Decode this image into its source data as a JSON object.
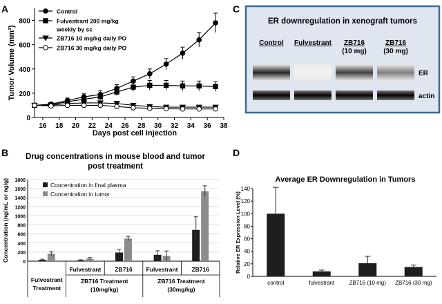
{
  "panels": {
    "a": "A",
    "b": "B",
    "c": "C",
    "d": "D"
  },
  "colors": {
    "dark": "#1e1e1e",
    "light": "#8c8c8c",
    "panel_border": "#3b6a94",
    "frame_bg": "#dfe6f0"
  },
  "chart_data": [
    {
      "id": "A",
      "type": "line",
      "title": "",
      "xlabel": "Days post cell injection",
      "ylabel": "Tumor Volume (mm³)",
      "xlim": [
        15,
        38
      ],
      "ylim": [
        0,
        900
      ],
      "xticks": [
        16,
        18,
        20,
        22,
        24,
        26,
        28,
        30,
        32,
        34,
        36,
        38
      ],
      "yticks": [
        0,
        200,
        400,
        600,
        800
      ],
      "x": [
        15,
        17,
        19,
        21,
        23,
        25,
        27,
        29,
        31,
        33,
        35,
        37
      ],
      "series": [
        {
          "name": "Control",
          "marker": "circle-filled",
          "values": [
            100,
            110,
            140,
            170,
            190,
            240,
            300,
            360,
            440,
            530,
            640,
            780
          ],
          "errors": [
            10,
            15,
            20,
            25,
            30,
            30,
            35,
            40,
            45,
            50,
            60,
            80
          ]
        },
        {
          "name": "Fulvestrant 200 mg/kg weekly by sc",
          "marker": "square-filled",
          "values": [
            100,
            105,
            130,
            150,
            170,
            210,
            250,
            265,
            265,
            260,
            260,
            255
          ],
          "errors": [
            10,
            15,
            20,
            20,
            25,
            30,
            35,
            40,
            40,
            40,
            40,
            40
          ]
        },
        {
          "name": "ZB716 10 mg/kg daily PO",
          "marker": "triangle-down-filled",
          "values": [
            100,
            100,
            115,
            120,
            120,
            115,
            100,
            90,
            85,
            85,
            85,
            85
          ],
          "errors": [
            10,
            10,
            12,
            15,
            15,
            15,
            12,
            10,
            10,
            10,
            10,
            10
          ]
        },
        {
          "name": "ZB716 30 mg/kg daily PO",
          "marker": "circle-open",
          "values": [
            100,
            95,
            100,
            100,
            100,
            90,
            80,
            75,
            72,
            70,
            70,
            70
          ],
          "errors": [
            10,
            10,
            10,
            12,
            12,
            10,
            10,
            10,
            10,
            10,
            10,
            10
          ]
        }
      ]
    },
    {
      "id": "B",
      "type": "bar",
      "title_lines": [
        "Drug concentrations in mouse blood and tumor",
        "post treatment"
      ],
      "ylabel": "Concentration (ng/mL or ng/g)",
      "ylim": [
        0,
        1800
      ],
      "yticks": [
        0,
        200,
        400,
        600,
        800,
        1000,
        1200,
        1400,
        1600,
        1800
      ],
      "legend": [
        "Concentration in final plasma",
        "Concentration in tumor"
      ],
      "categories": [
        "Fulvestrant",
        "Fulvestrant",
        "ZB716",
        "Fulvestrant",
        "ZB716"
      ],
      "category_labels": [
        "",
        "Fulvestrant",
        "ZB716",
        "Fulvestrant",
        "ZB716"
      ],
      "group_labels": [
        {
          "lines": [
            "Fulvestrant",
            "Treatment"
          ],
          "span": [
            0,
            1
          ]
        },
        {
          "lines": [
            "ZB716 Treatment",
            "(10mg/kg)"
          ],
          "span": [
            1,
            3
          ]
        },
        {
          "lines": [
            "ZB716 Treatment",
            "(30mg/kg)"
          ],
          "span": [
            3,
            5
          ]
        }
      ],
      "series": [
        {
          "name": "Concentration in final plasma",
          "values": [
            30,
            20,
            190,
            140,
            690
          ],
          "errors": [
            15,
            10,
            70,
            90,
            290
          ]
        },
        {
          "name": "Concentration in tumor",
          "values": [
            165,
            55,
            500,
            115,
            1545
          ],
          "errors": [
            45,
            25,
            45,
            110,
            120
          ]
        }
      ]
    },
    {
      "id": "C",
      "type": "table",
      "title": "ER downregulation in xenograft tumors",
      "columns": [
        [
          "Control"
        ],
        [
          "Fulvestrant"
        ],
        [
          "ZB716",
          "(10 mg)"
        ],
        [
          "ZB716",
          "(30 mg)"
        ]
      ],
      "rows": [
        "ER",
        "actin"
      ],
      "band_intensity": {
        "ER": [
          0.85,
          0.05,
          0.75,
          0.5
        ],
        "actin": [
          1.0,
          1.0,
          1.0,
          1.0
        ]
      }
    },
    {
      "id": "D",
      "type": "bar",
      "title": "Average ER Downregulation in Tumors",
      "ylabel": "Relative ER Expression Level (%)",
      "ylim": [
        0,
        140
      ],
      "yticks": [
        0,
        20,
        40,
        60,
        80,
        100,
        120,
        140
      ],
      "categories": [
        "control",
        "fulvestrant",
        "ZB716 (10 mg)",
        "ZB716 (30 mg)"
      ],
      "values": [
        100,
        8,
        21,
        15
      ],
      "errors": [
        42,
        2,
        11,
        3
      ]
    }
  ]
}
